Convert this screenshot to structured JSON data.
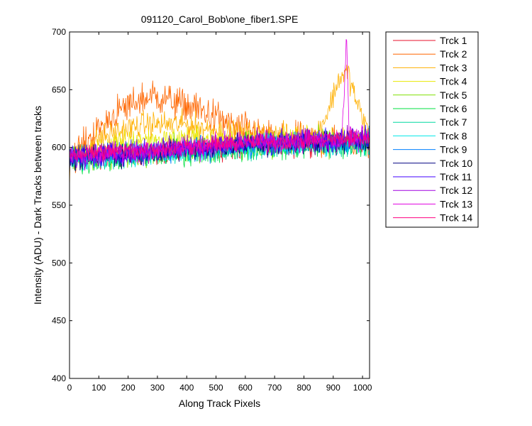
{
  "window": {
    "background": "#ffffff"
  },
  "chart_data": {
    "type": "line",
    "title": "091120_Carol_Bob\\one_fiber1.SPE",
    "xlabel": "Along Track Pixels",
    "ylabel": "Intensity (ADU) - Dark Tracks between tracks",
    "xlim": [
      0,
      1024
    ],
    "ylim": [
      400,
      700
    ],
    "xticks": [
      0,
      100,
      200,
      300,
      400,
      500,
      600,
      700,
      800,
      900,
      1000
    ],
    "yticks": [
      400,
      450,
      500,
      550,
      600,
      650,
      700
    ],
    "grid": false,
    "legend_position": "outside-top-right",
    "series": [
      {
        "name": "Trck 1",
        "color": "#e8112b",
        "approx_profile": [
          [
            0,
            590
          ],
          [
            150,
            593
          ],
          [
            300,
            595
          ],
          [
            500,
            600
          ],
          [
            700,
            602
          ],
          [
            900,
            605
          ],
          [
            1024,
            604
          ]
        ],
        "noise": 9
      },
      {
        "name": "Trck 2",
        "color": "#ff6600",
        "approx_profile": [
          [
            0,
            588
          ],
          [
            60,
            605
          ],
          [
            150,
            628
          ],
          [
            230,
            640
          ],
          [
            290,
            645
          ],
          [
            350,
            640
          ],
          [
            450,
            632
          ],
          [
            560,
            618
          ],
          [
            700,
            608
          ],
          [
            860,
            605
          ],
          [
            1024,
            606
          ]
        ],
        "noise": 13
      },
      {
        "name": "Trck 3",
        "color": "#ffb000",
        "approx_profile": [
          [
            0,
            588
          ],
          [
            100,
            608
          ],
          [
            250,
            620
          ],
          [
            400,
            620
          ],
          [
            550,
            612
          ],
          [
            700,
            610
          ],
          [
            840,
            610
          ],
          [
            880,
            630
          ],
          [
            920,
            660
          ],
          [
            950,
            665
          ],
          [
            985,
            635
          ],
          [
            1024,
            612
          ]
        ],
        "noise": 10
      },
      {
        "name": "Trck 4",
        "color": "#e8e800",
        "approx_profile": [
          [
            0,
            590
          ],
          [
            200,
            606
          ],
          [
            400,
            608
          ],
          [
            600,
            606
          ],
          [
            800,
            606
          ],
          [
            1024,
            606
          ]
        ],
        "noise": 9
      },
      {
        "name": "Trck 5",
        "color": "#7fe000",
        "approx_profile": [
          [
            0,
            590
          ],
          [
            300,
            597
          ],
          [
            600,
            602
          ],
          [
            1024,
            606
          ]
        ],
        "noise": 10
      },
      {
        "name": "Trck 6",
        "color": "#00e040",
        "approx_profile": [
          [
            0,
            588
          ],
          [
            300,
            594
          ],
          [
            600,
            600
          ],
          [
            1024,
            604
          ]
        ],
        "noise": 10
      },
      {
        "name": "Trck 7",
        "color": "#00d8a0",
        "approx_profile": [
          [
            0,
            588
          ],
          [
            300,
            594
          ],
          [
            600,
            600
          ],
          [
            1024,
            603
          ]
        ],
        "noise": 9
      },
      {
        "name": "Trck 8",
        "color": "#00e8e8",
        "approx_profile": [
          [
            0,
            588
          ],
          [
            300,
            595
          ],
          [
            600,
            601
          ],
          [
            1024,
            604
          ]
        ],
        "noise": 9
      },
      {
        "name": "Trck 9",
        "color": "#0080ff",
        "approx_profile": [
          [
            0,
            590
          ],
          [
            300,
            596
          ],
          [
            600,
            602
          ],
          [
            1024,
            606
          ]
        ],
        "noise": 9
      },
      {
        "name": "Trck 10",
        "color": "#000080",
        "approx_profile": [
          [
            0,
            590
          ],
          [
            300,
            596
          ],
          [
            600,
            602
          ],
          [
            1024,
            606
          ]
        ],
        "noise": 9
      },
      {
        "name": "Trck 11",
        "color": "#4000ff",
        "approx_profile": [
          [
            0,
            592
          ],
          [
            300,
            598
          ],
          [
            600,
            604
          ],
          [
            1024,
            608
          ]
        ],
        "noise": 9
      },
      {
        "name": "Trck 12",
        "color": "#a000e0",
        "approx_profile": [
          [
            0,
            592
          ],
          [
            300,
            598
          ],
          [
            600,
            604
          ],
          [
            1024,
            608
          ]
        ],
        "noise": 9
      },
      {
        "name": "Trck 13",
        "color": "#e000e0",
        "approx_profile": [
          [
            0,
            592
          ],
          [
            300,
            598
          ],
          [
            600,
            604
          ],
          [
            930,
            606
          ],
          [
            945,
            698
          ],
          [
            955,
            610
          ],
          [
            1024,
            608
          ]
        ],
        "noise": 8
      },
      {
        "name": "Trck 14",
        "color": "#ff0080",
        "approx_profile": [
          [
            0,
            594
          ],
          [
            300,
            599
          ],
          [
            600,
            604
          ],
          [
            1024,
            608
          ]
        ],
        "noise": 7
      }
    ]
  }
}
